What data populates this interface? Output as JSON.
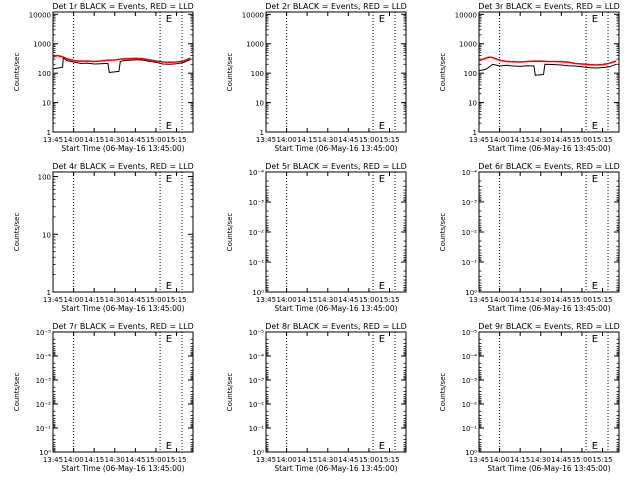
{
  "chart_data": [
    {
      "type": "line",
      "title": "Det 1r BLACK = Events, RED = LLD",
      "xlabel": "Start Time (06-May-16 13:45:00)",
      "ylabel": "Counts/sec",
      "yscale": "log",
      "ylim": [
        1,
        12000
      ],
      "ytick_labels": [
        "1",
        "10",
        "100",
        "1000",
        "10000"
      ],
      "xlim_minutes": [
        0,
        102
      ],
      "xtick_labels": [
        "13:45",
        "14:00",
        "14:15",
        "14:30",
        "14:45",
        "15:00",
        "15:15"
      ],
      "vlines_minutes": [
        15,
        78,
        94
      ],
      "marker_label": "E",
      "marker_x_minutes": 80,
      "series": [
        {
          "color": "#000000",
          "x": [
            0,
            7,
            7.5,
            10,
            15,
            20,
            25,
            30,
            35,
            40,
            41,
            48,
            49,
            52,
            58,
            64,
            70,
            75,
            80,
            85,
            90,
            95,
            100
          ],
          "y": [
            140,
            160,
            330,
            270,
            240,
            215,
            220,
            205,
            210,
            215,
            105,
            115,
            250,
            270,
            280,
            285,
            255,
            235,
            205,
            200,
            210,
            230,
            290
          ]
        },
        {
          "color": "#ff0000",
          "x": [
            0,
            3,
            7,
            10,
            15,
            20,
            25,
            30,
            35,
            40,
            45,
            50,
            55,
            60,
            65,
            70,
            75,
            80,
            85,
            90,
            95,
            100
          ],
          "y": [
            350,
            400,
            360,
            310,
            270,
            255,
            260,
            250,
            260,
            275,
            280,
            300,
            310,
            320,
            310,
            285,
            260,
            240,
            235,
            240,
            260,
            320
          ]
        }
      ]
    },
    {
      "type": "line",
      "title": "Det 2r BLACK = Events, RED = LLD",
      "xlabel": "Start Time (06-May-16 13:45:00)",
      "ylabel": "Counts/sec",
      "yscale": "log",
      "ylim": [
        1,
        12000
      ],
      "ytick_labels": [
        "1",
        "10",
        "100",
        "1000",
        "10000"
      ],
      "xlim_minutes": [
        0,
        102
      ],
      "xtick_labels": [
        "13:45",
        "14:00",
        "14:15",
        "14:30",
        "14:45",
        "15:00",
        "15:15"
      ],
      "vlines_minutes": [
        15,
        78,
        94
      ],
      "marker_label": "E",
      "marker_x_minutes": 80,
      "series": []
    },
    {
      "type": "line",
      "title": "Det 3r BLACK = Events, RED = LLD",
      "xlabel": "Start Time (06-May-16 13:45:00)",
      "ylabel": "Counts/sec",
      "yscale": "log",
      "ylim": [
        1,
        12000
      ],
      "ytick_labels": [
        "1",
        "10",
        "100",
        "1000",
        "10000"
      ],
      "xlim_minutes": [
        0,
        102
      ],
      "xtick_labels": [
        "13:45",
        "14:00",
        "14:15",
        "14:30",
        "14:45",
        "15:00",
        "15:15"
      ],
      "vlines_minutes": [
        15,
        78,
        94
      ],
      "marker_label": "E",
      "marker_x_minutes": 80,
      "series": [
        {
          "color": "#000000",
          "x": [
            0,
            5,
            8,
            10,
            15,
            20,
            25,
            30,
            35,
            40,
            41,
            47,
            48,
            55,
            60,
            65,
            70,
            75,
            80,
            85,
            90,
            95,
            100
          ],
          "y": [
            120,
            135,
            170,
            200,
            175,
            185,
            175,
            170,
            180,
            175,
            85,
            90,
            200,
            195,
            190,
            180,
            175,
            165,
            155,
            150,
            155,
            165,
            200
          ]
        },
        {
          "color": "#ff0000",
          "x": [
            0,
            3,
            7,
            10,
            15,
            20,
            25,
            30,
            35,
            40,
            45,
            50,
            55,
            60,
            65,
            70,
            75,
            80,
            85,
            90,
            95,
            100
          ],
          "y": [
            270,
            300,
            350,
            340,
            275,
            250,
            245,
            240,
            250,
            255,
            255,
            250,
            250,
            245,
            235,
            215,
            205,
            195,
            190,
            195,
            215,
            260
          ]
        }
      ]
    },
    {
      "type": "line",
      "title": "Det 4r BLACK = Events, RED = LLD",
      "xlabel": "Start Time (06-May-16 13:45:00)",
      "ylabel": "Counts/sec",
      "yscale": "log",
      "ylim": [
        1,
        120
      ],
      "ytick_labels": [
        "1",
        "10",
        "100"
      ],
      "xlim_minutes": [
        0,
        102
      ],
      "xtick_labels": [
        "13:45",
        "14:00",
        "14:15",
        "14:30",
        "14:45",
        "15:00",
        "15:15"
      ],
      "vlines_minutes": [
        15,
        78,
        94
      ],
      "marker_label": "E",
      "marker_x_minutes": 80,
      "series": []
    },
    {
      "type": "line",
      "title": "Det 5r BLACK = Events, RED = LLD",
      "xlabel": "Start Time (06-May-16 13:45:00)",
      "ylabel": "Counts/sec",
      "yscale": "log",
      "ylim": [
        1,
        0.0001
      ],
      "ytick_labels": [
        "10⁰",
        "10⁻¹",
        "10⁻²",
        "10⁻³",
        "10⁻⁴"
      ],
      "xlim_minutes": [
        0,
        102
      ],
      "xtick_labels": [
        "13:45",
        "14:00",
        "14:15",
        "14:30",
        "14:45",
        "15:00",
        "15:15"
      ],
      "vlines_minutes": [
        15,
        78,
        94
      ],
      "marker_label": "E",
      "marker_x_minutes": 80,
      "series": []
    },
    {
      "type": "line",
      "title": "Det 6r BLACK = Events, RED = LLD",
      "xlabel": "Start Time (06-May-16 13:45:00)",
      "ylabel": "Counts/sec",
      "yscale": "log",
      "ylim": [
        1,
        0.0001
      ],
      "ytick_labels": [
        "10⁰",
        "10⁻¹",
        "10⁻²",
        "10⁻³",
        "10⁻⁴"
      ],
      "xlim_minutes": [
        0,
        102
      ],
      "xtick_labels": [
        "13:45",
        "14:00",
        "14:15",
        "14:30",
        "14:45",
        "15:00",
        "15:15"
      ],
      "vlines_minutes": [
        15,
        78,
        94
      ],
      "marker_label": "E",
      "marker_x_minutes": 80,
      "series": []
    },
    {
      "type": "line",
      "title": "Det 7r BLACK = Events, RED = LLD",
      "xlabel": "Start Time (06-May-16 13:45:00)",
      "ylabel": "Counts/sec",
      "yscale": "log",
      "ylim": [
        1,
        1e-05
      ],
      "ytick_labels": [
        "10⁰",
        "10⁻¹",
        "10⁻²",
        "10⁻³",
        "10⁻⁴",
        "10⁻⁵"
      ],
      "xlim_minutes": [
        0,
        102
      ],
      "xtick_labels": [
        "13:45",
        "14:00",
        "14:15",
        "14:30",
        "14:45",
        "15:00",
        "15:15"
      ],
      "vlines_minutes": [
        15,
        78,
        94
      ],
      "marker_label": "E",
      "marker_x_minutes": 80,
      "series": []
    },
    {
      "type": "line",
      "title": "Det 8r BLACK = Events, RED = LLD",
      "xlabel": "Start Time (06-May-16 13:45:00)",
      "ylabel": "Counts/sec",
      "yscale": "log",
      "ylim": [
        1,
        1e-05
      ],
      "ytick_labels": [
        "10⁰",
        "10⁻¹",
        "10⁻²",
        "10⁻³",
        "10⁻⁴",
        "10⁻⁵"
      ],
      "xlim_minutes": [
        0,
        102
      ],
      "xtick_labels": [
        "13:45",
        "14:00",
        "14:15",
        "14:30",
        "14:45",
        "15:00",
        "15:15"
      ],
      "vlines_minutes": [
        15,
        78,
        94
      ],
      "marker_label": "E",
      "marker_x_minutes": 80,
      "series": []
    },
    {
      "type": "line",
      "title": "Det 9r BLACK = Events, RED = LLD",
      "xlabel": "Start Time (06-May-16 13:45:00)",
      "ylabel": "Counts/sec",
      "yscale": "log",
      "ylim": [
        1,
        1e-05
      ],
      "ytick_labels": [
        "10⁰",
        "10⁻¹",
        "10⁻²",
        "10⁻³",
        "10⁻⁴",
        "10⁻⁵"
      ],
      "xlim_minutes": [
        0,
        102
      ],
      "xtick_labels": [
        "13:45",
        "14:00",
        "14:15",
        "14:30",
        "14:45",
        "15:00",
        "15:15"
      ],
      "vlines_minutes": [
        15,
        78,
        94
      ],
      "marker_label": "E",
      "marker_x_minutes": 80,
      "series": []
    }
  ]
}
